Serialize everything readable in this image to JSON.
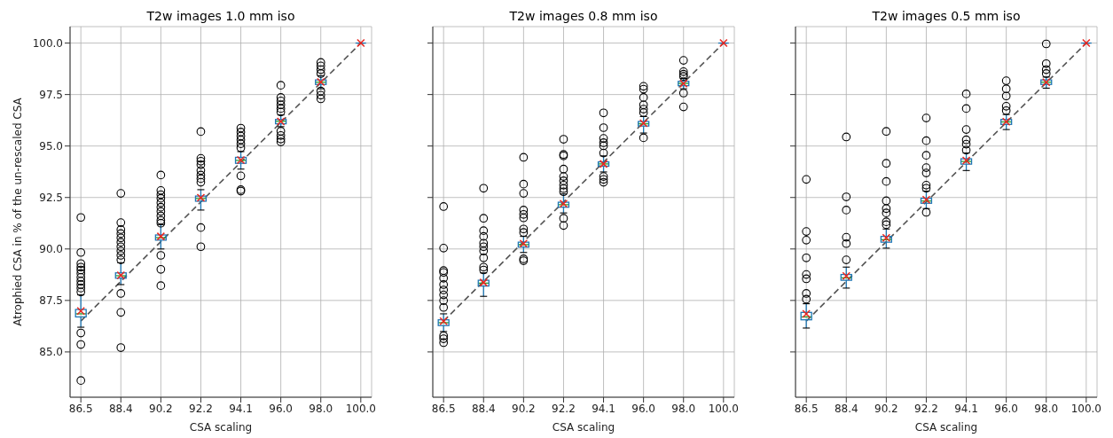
{
  "chart_data": [
    {
      "type": "box",
      "title": "T2w images 1.0 mm iso",
      "xlabel": "CSA scaling",
      "ylabel": "Atrophied CSA in % of the un-rescaled CSA",
      "categories": [
        "86.5",
        "88.4",
        "90.2",
        "92.2",
        "94.1",
        "96.0",
        "98.0",
        "100.0"
      ],
      "color": "#1f77b4",
      "grid": true,
      "ylim": [
        82.8,
        100.8
      ],
      "yticks": [
        {
          "value": 85,
          "label": "85.0"
        },
        {
          "value": 87.5,
          "label": "87.5"
        },
        {
          "value": 90,
          "label": "90.0"
        },
        {
          "value": 92.5,
          "label": "92.5"
        },
        {
          "value": 95,
          "label": "95.0"
        },
        {
          "value": 97.5,
          "label": "97.5"
        },
        {
          "value": 100,
          "label": "100.0"
        }
      ],
      "boxes": [
        {
          "low": 86.2,
          "q1": 86.7,
          "median": 86.85,
          "q3": 87.06,
          "high": 87.77,
          "mean": 86.99,
          "outliers": [
            91.53,
            89.83,
            89.29,
            89.12,
            88.98,
            88.81,
            88.62,
            88.44,
            88.27,
            88.1,
            87.91,
            85.92,
            85.36,
            83.61
          ]
        },
        {
          "low": 88.27,
          "q1": 88.58,
          "median": 88.7,
          "q3": 88.84,
          "high": 89.33,
          "mean": 88.72,
          "outliers": [
            92.7,
            91.28,
            90.94,
            90.75,
            90.54,
            90.33,
            90.11,
            89.9,
            89.69,
            89.47,
            87.84,
            86.92,
            85.21
          ]
        },
        {
          "low": 90.0,
          "q1": 90.43,
          "median": 90.55,
          "q3": 90.68,
          "high": 91.18,
          "mean": 90.61,
          "outliers": [
            93.59,
            92.84,
            92.64,
            92.46,
            92.24,
            92.03,
            91.82,
            91.61,
            91.39,
            91.25,
            89.69,
            89.01,
            88.22
          ]
        },
        {
          "low": 91.89,
          "q1": 92.32,
          "median": 92.45,
          "q3": 92.57,
          "high": 92.88,
          "mean": 92.49,
          "outliers": [
            95.7,
            94.4,
            94.26,
            94.09,
            93.81,
            93.59,
            93.42,
            93.24,
            91.04,
            90.11
          ]
        },
        {
          "low": 93.88,
          "q1": 94.16,
          "median": 94.3,
          "q3": 94.45,
          "high": 94.73,
          "mean": 94.32,
          "outliers": [
            95.87,
            95.68,
            95.48,
            95.3,
            95.11,
            94.91,
            93.55,
            92.88,
            92.81
          ]
        },
        {
          "low": 95.94,
          "q1": 96.08,
          "median": 96.2,
          "q3": 96.29,
          "high": 96.51,
          "mean": 96.19,
          "outliers": [
            97.95,
            97.36,
            97.19,
            97.0,
            96.82,
            96.65,
            95.72,
            95.51,
            95.34,
            95.2
          ]
        },
        {
          "low": 97.78,
          "q1": 97.99,
          "median": 98.1,
          "q3": 98.21,
          "high": 98.42,
          "mean": 98.11,
          "outliers": [
            99.06,
            98.89,
            98.71,
            98.52,
            97.67,
            97.47,
            97.29
          ]
        },
        {
          "low": 100,
          "q1": 100,
          "median": 100,
          "q3": 100,
          "high": 100,
          "mean": 100
        }
      ],
      "series": [
        {
          "type": "line",
          "x": [
            "86.5",
            "100.0"
          ],
          "values": [
            86.5,
            100
          ],
          "color": "#555555",
          "line_style": "dashed"
        }
      ]
    },
    {
      "type": "box",
      "title": "T2w images 0.8 mm iso",
      "xlabel": "CSA scaling",
      "categories": [
        "86.5",
        "88.4",
        "90.2",
        "92.2",
        "94.1",
        "96.0",
        "98.0",
        "100.0"
      ],
      "color": "#1f77b4",
      "grid": true,
      "tick_labels": "x",
      "ylim": [
        82.8,
        100.8
      ],
      "yticks": [
        {
          "value": 85,
          "label": null
        },
        {
          "value": 87.5,
          "label": null
        },
        {
          "value": 90,
          "label": null
        },
        {
          "value": 92.5,
          "label": null
        },
        {
          "value": 95,
          "label": null
        },
        {
          "value": 97.5,
          "label": null
        },
        {
          "value": 100,
          "label": null
        }
      ],
      "boxes": [
        {
          "low": 85.99,
          "q1": 86.28,
          "median": 86.42,
          "q3": 86.56,
          "high": 86.85,
          "mean": 86.49,
          "outliers": [
            92.06,
            90.04,
            88.95,
            88.86,
            88.58,
            88.27,
            88.01,
            87.77,
            87.49,
            87.16,
            85.78,
            85.64,
            85.45
          ]
        },
        {
          "low": 87.7,
          "q1": 88.2,
          "median": 88.34,
          "q3": 88.48,
          "high": 88.84,
          "mean": 88.37,
          "outliers": [
            92.95,
            91.49,
            90.89,
            90.61,
            90.28,
            90.11,
            89.9,
            89.57,
            89.12,
            88.98
          ]
        },
        {
          "low": 89.83,
          "q1": 90.09,
          "median": 90.21,
          "q3": 90.33,
          "high": 90.61,
          "mean": 90.26,
          "outliers": [
            94.45,
            93.15,
            92.7,
            91.89,
            91.68,
            91.51,
            90.97,
            90.8,
            89.52,
            89.43
          ]
        },
        {
          "low": 91.75,
          "q1": 92.03,
          "median": 92.15,
          "q3": 92.27,
          "high": 92.67,
          "mean": 92.2,
          "outliers": [
            95.33,
            94.59,
            94.52,
            93.88,
            93.52,
            93.31,
            93.1,
            92.93,
            92.78,
            91.49,
            91.14
          ]
        },
        {
          "low": 93.74,
          "q1": 94.02,
          "median": 94.13,
          "q3": 94.23,
          "high": 94.52,
          "mean": 94.13,
          "outliers": [
            96.61,
            95.89,
            95.37,
            95.16,
            95.01,
            94.66,
            93.52,
            93.38,
            93.24
          ]
        },
        {
          "low": 95.63,
          "q1": 95.97,
          "median": 96.08,
          "q3": 96.19,
          "high": 96.43,
          "mean": 96.11,
          "outliers": [
            97.9,
            97.76,
            97.36,
            97.0,
            96.79,
            96.62,
            95.4
          ]
        },
        {
          "low": 97.78,
          "q1": 97.93,
          "median": 98.04,
          "q3": 98.14,
          "high": 98.28,
          "mean": 98.03,
          "outliers": [
            99.16,
            98.61,
            98.49,
            98.38,
            97.57,
            96.9
          ]
        },
        {
          "low": 100,
          "q1": 100,
          "median": 100,
          "q3": 100,
          "high": 100,
          "mean": 100
        }
      ],
      "series": [
        {
          "type": "line",
          "x": [
            "86.5",
            "100.0"
          ],
          "values": [
            86.5,
            100
          ],
          "color": "#555555",
          "line_style": "dashed"
        }
      ]
    },
    {
      "type": "box",
      "title": "T2w images 0.5 mm iso",
      "xlabel": "CSA scaling",
      "categories": [
        "86.5",
        "88.4",
        "90.2",
        "92.2",
        "94.1",
        "96.0",
        "98.0",
        "100.0"
      ],
      "color": "#1f77b4",
      "grid": true,
      "tick_labels": "x",
      "ylim": [
        82.8,
        100.8
      ],
      "yticks": [
        {
          "value": 85,
          "label": null
        },
        {
          "value": 87.5,
          "label": null
        },
        {
          "value": 90,
          "label": null
        },
        {
          "value": 92.5,
          "label": null
        },
        {
          "value": 95,
          "label": null
        },
        {
          "value": 97.5,
          "label": null
        },
        {
          "value": 100,
          "label": null
        }
      ],
      "boxes": [
        {
          "low": 86.16,
          "q1": 86.56,
          "median": 86.7,
          "q3": 86.92,
          "high": 87.34,
          "mean": 86.85,
          "outliers": [
            93.38,
            90.85,
            90.43,
            89.57,
            88.76,
            88.55,
            87.84,
            87.56
          ]
        },
        {
          "low": 88.1,
          "q1": 88.48,
          "median": 88.6,
          "q3": 88.76,
          "high": 89.12,
          "mean": 88.69,
          "outliers": [
            95.44,
            92.53,
            91.89,
            90.57,
            90.26,
            89.47
          ]
        },
        {
          "low": 90.04,
          "q1": 90.33,
          "median": 90.45,
          "q3": 90.61,
          "high": 90.97,
          "mean": 90.54,
          "outliers": [
            95.71,
            94.16,
            93.28,
            92.34,
            91.96,
            91.75,
            91.32,
            91.18
          ]
        },
        {
          "low": 91.96,
          "q1": 92.22,
          "median": 92.33,
          "q3": 92.46,
          "high": 92.81,
          "mean": 92.39,
          "outliers": [
            96.36,
            95.26,
            94.55,
            93.95,
            93.69,
            93.1,
            92.95,
            91.78
          ]
        },
        {
          "low": 93.81,
          "q1": 94.12,
          "median": 94.25,
          "q3": 94.38,
          "high": 94.66,
          "mean": 94.3,
          "outliers": [
            97.53,
            96.82,
            95.8,
            95.3,
            95.09,
            94.8
          ]
        },
        {
          "low": 95.8,
          "q1": 96.05,
          "median": 96.17,
          "q3": 96.29,
          "high": 96.53,
          "mean": 96.18,
          "outliers": [
            98.17,
            97.78,
            97.43,
            96.93,
            96.72
          ]
        },
        {
          "low": 97.81,
          "q1": 97.99,
          "median": 98.1,
          "q3": 98.21,
          "high": 98.35,
          "mean": 98.1,
          "outliers": [
            99.96,
            99.0,
            98.71,
            98.52
          ]
        },
        {
          "low": 100,
          "q1": 100,
          "median": 100,
          "q3": 100,
          "high": 100,
          "mean": 100
        }
      ],
      "series": [
        {
          "type": "line",
          "x": [
            "86.5",
            "100.0"
          ],
          "values": [
            86.5,
            100
          ],
          "color": "#555555",
          "line_style": "dashed"
        }
      ]
    }
  ]
}
